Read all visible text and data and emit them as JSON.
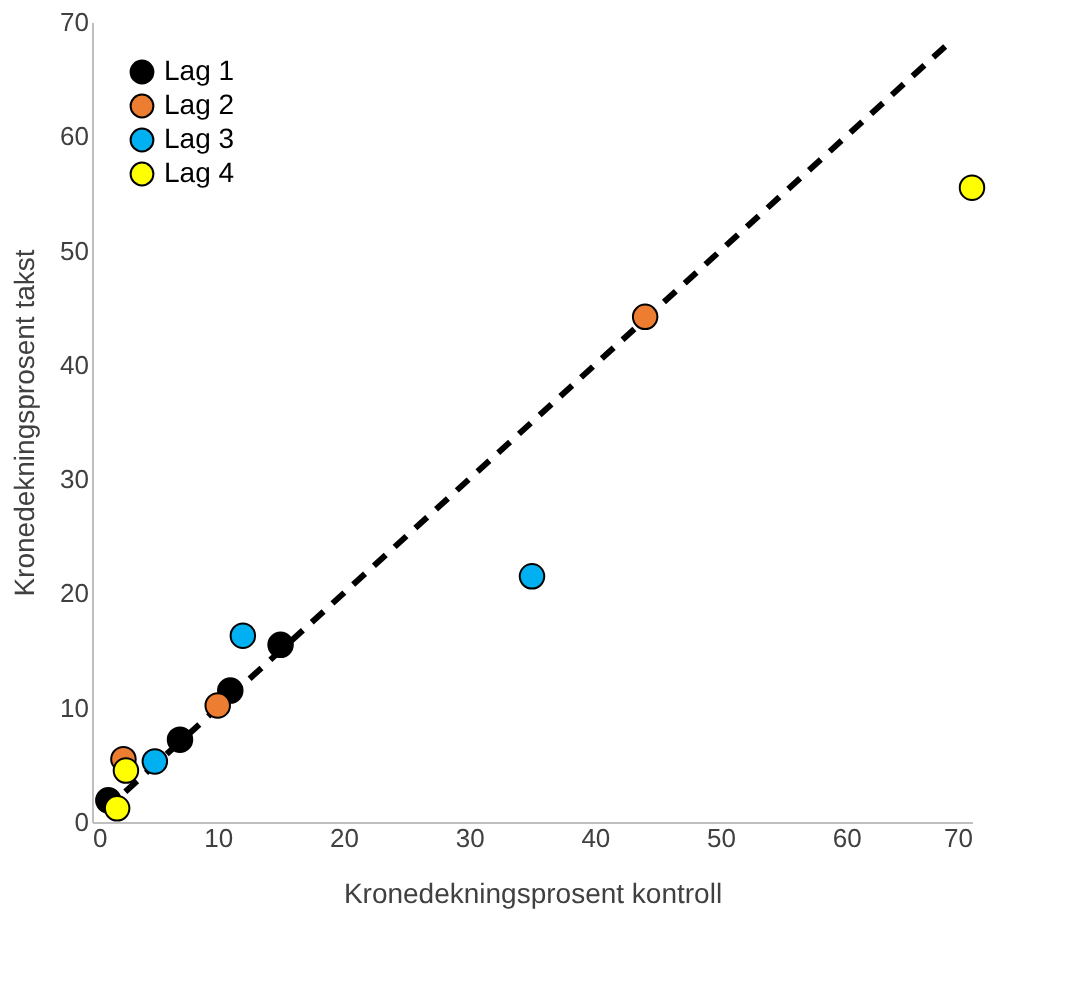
{
  "chart_data": {
    "type": "scatter",
    "xlabel": "Kronedekningsprosent kontroll",
    "ylabel": "Kronedekningsprosent takst",
    "xlim": [
      0,
      70
    ],
    "ylim": [
      0,
      70
    ],
    "xticks": [
      0,
      10,
      20,
      30,
      40,
      50,
      60,
      70
    ],
    "yticks": [
      0,
      10,
      20,
      30,
      40,
      50,
      60,
      70
    ],
    "grid": false,
    "legend": "top left",
    "marker": "circle",
    "series": [
      {
        "type": "line",
        "line_style": "dashed",
        "color": "#000000",
        "x": [
          1,
          68
        ],
        "values": [
          1,
          68
        ],
        "marker": "none"
      },
      {
        "name": "Lag 1",
        "color": "#000000",
        "x": [
          1.3,
          7,
          11,
          15
        ],
        "values": [
          1.9,
          7.2,
          11.5,
          15.5
        ]
      },
      {
        "name": "Lag 2",
        "color": "#ed7d31",
        "x": [
          2.5,
          10,
          44
        ],
        "values": [
          5.5,
          10.2,
          44.2
        ]
      },
      {
        "name": "Lag 3",
        "color": "#00b0f0",
        "x": [
          5,
          12,
          35
        ],
        "values": [
          5.3,
          16.3,
          21.5
        ]
      },
      {
        "name": "Lag 4",
        "color": "#ffff00",
        "x": [
          2,
          2.7,
          70
        ],
        "values": [
          1.2,
          4.5,
          55.5
        ]
      }
    ]
  }
}
